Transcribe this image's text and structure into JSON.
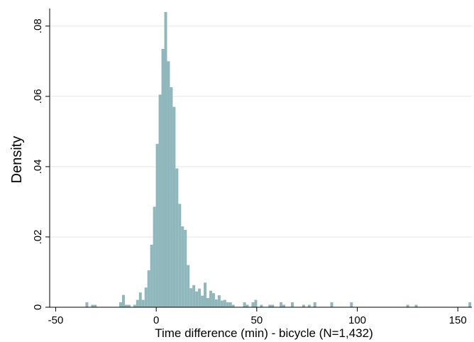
{
  "chart_data": {
    "type": "bar",
    "subtype": "histogram",
    "xlabel": "Time difference (min) - bicycle (N=1,432)",
    "ylabel": "Density",
    "xlim": [
      -53,
      157
    ],
    "ylim": [
      0,
      0.085
    ],
    "xticks": [
      -50,
      0,
      50,
      100,
      150
    ],
    "xtick_labels": [
      "-50",
      "0",
      "50",
      "100",
      "150"
    ],
    "yticks": [
      0,
      0.02,
      0.04,
      0.06,
      0.08
    ],
    "ytick_labels": [
      "0",
      ".02",
      ".04",
      ".06",
      ".08"
    ],
    "grid": true,
    "bin_width": 1.4,
    "bar_color": "#8fb7bc",
    "bars": [
      {
        "x": -34.5,
        "y": 0.0014
      },
      {
        "x": -31.7,
        "y": 0.0007
      },
      {
        "x": -30.3,
        "y": 0.0007
      },
      {
        "x": -17.7,
        "y": 0.0014
      },
      {
        "x": -16.3,
        "y": 0.0035
      },
      {
        "x": -14.9,
        "y": 0.0007
      },
      {
        "x": -13.5,
        "y": 0.0007
      },
      {
        "x": -10.7,
        "y": 0.0007
      },
      {
        "x": -9.3,
        "y": 0.0021
      },
      {
        "x": -7.9,
        "y": 0.0042
      },
      {
        "x": -6.5,
        "y": 0.0021
      },
      {
        "x": -5.1,
        "y": 0.0056
      },
      {
        "x": -3.7,
        "y": 0.0105
      },
      {
        "x": -2.3,
        "y": 0.0178
      },
      {
        "x": -0.9,
        "y": 0.0286
      },
      {
        "x": 0.5,
        "y": 0.0465
      },
      {
        "x": 1.9,
        "y": 0.0605
      },
      {
        "x": 3.3,
        "y": 0.0735
      },
      {
        "x": 4.7,
        "y": 0.084
      },
      {
        "x": 6.1,
        "y": 0.07
      },
      {
        "x": 7.5,
        "y": 0.0626
      },
      {
        "x": 8.9,
        "y": 0.057
      },
      {
        "x": 10.3,
        "y": 0.0395
      },
      {
        "x": 11.7,
        "y": 0.0294
      },
      {
        "x": 13.1,
        "y": 0.023
      },
      {
        "x": 14.5,
        "y": 0.022
      },
      {
        "x": 15.9,
        "y": 0.012
      },
      {
        "x": 17.3,
        "y": 0.0054
      },
      {
        "x": 18.7,
        "y": 0.0063
      },
      {
        "x": 20.1,
        "y": 0.0045
      },
      {
        "x": 21.5,
        "y": 0.0053
      },
      {
        "x": 22.9,
        "y": 0.0033
      },
      {
        "x": 24.3,
        "y": 0.007
      },
      {
        "x": 25.7,
        "y": 0.0026
      },
      {
        "x": 27.1,
        "y": 0.0047
      },
      {
        "x": 28.5,
        "y": 0.004
      },
      {
        "x": 29.9,
        "y": 0.0022
      },
      {
        "x": 31.3,
        "y": 0.0034
      },
      {
        "x": 32.7,
        "y": 0.0019
      },
      {
        "x": 34.1,
        "y": 0.0021
      },
      {
        "x": 35.5,
        "y": 0.0014
      },
      {
        "x": 36.9,
        "y": 0.0014
      },
      {
        "x": 38.3,
        "y": 0.0007
      },
      {
        "x": 43.9,
        "y": 0.0014
      },
      {
        "x": 45.3,
        "y": 0.0007
      },
      {
        "x": 48.1,
        "y": 0.0014
      },
      {
        "x": 49.5,
        "y": 0.0021
      },
      {
        "x": 52.3,
        "y": 0.0007
      },
      {
        "x": 56.5,
        "y": 0.0007
      },
      {
        "x": 57.9,
        "y": 0.0007
      },
      {
        "x": 62.1,
        "y": 0.0014
      },
      {
        "x": 63.5,
        "y": 0.0007
      },
      {
        "x": 67.7,
        "y": 0.0014
      },
      {
        "x": 73.3,
        "y": 0.0007
      },
      {
        "x": 76.1,
        "y": 0.0007
      },
      {
        "x": 78.9,
        "y": 0.0014
      },
      {
        "x": 87.3,
        "y": 0.0014
      },
      {
        "x": 97.1,
        "y": 0.0014
      },
      {
        "x": 125.1,
        "y": 0.0007
      },
      {
        "x": 129.3,
        "y": 0.0007
      },
      {
        "x": 156.0,
        "y": 0.0014
      }
    ]
  }
}
